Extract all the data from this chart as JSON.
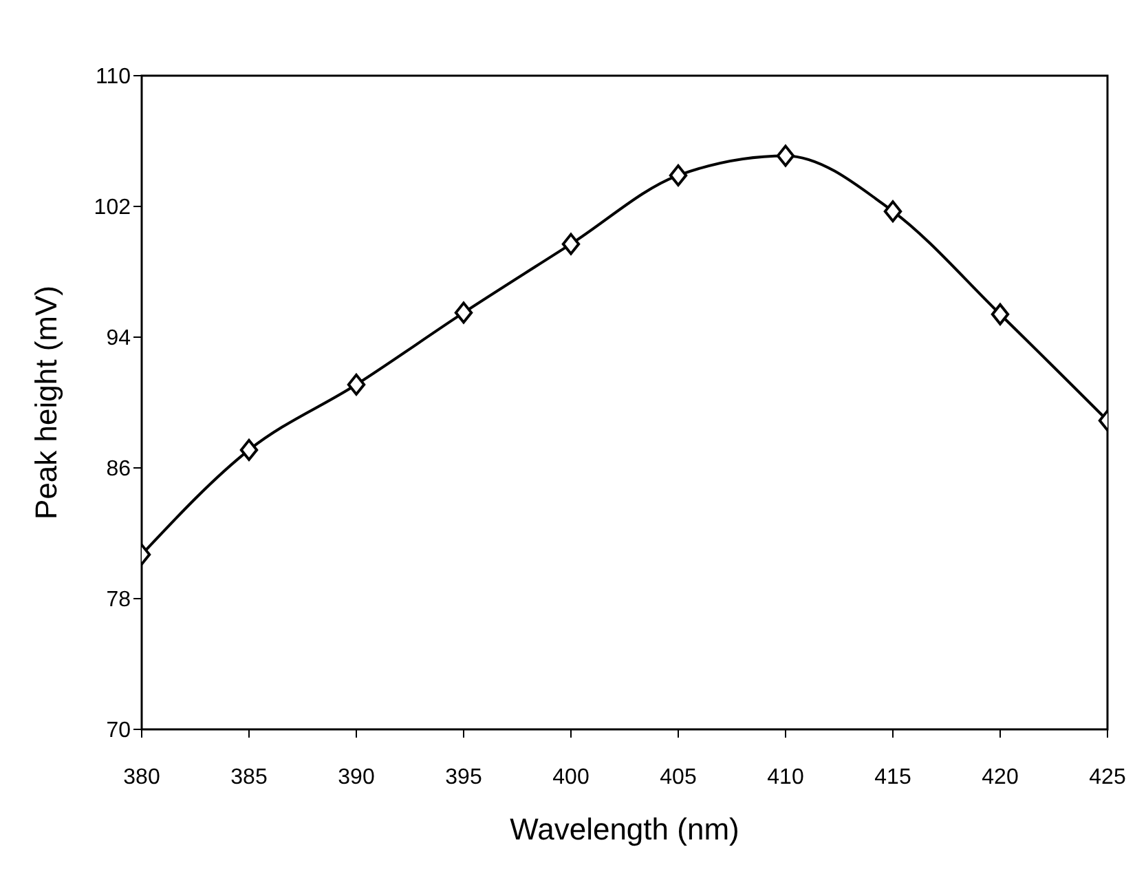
{
  "chart_data": {
    "type": "line",
    "xlabel": "Wavelength (nm)",
    "ylabel": "Peak height (mV)",
    "x": [
      380,
      385,
      390,
      395,
      400,
      405,
      410,
      415,
      420,
      425
    ],
    "series": [
      {
        "color": "#000000",
        "values": [
          80.7,
          87.1,
          91.1,
          95.5,
          99.7,
          103.9,
          105.1,
          101.7,
          95.4,
          88.9
        ]
      }
    ],
    "xlim": [
      380,
      425
    ],
    "xticks": [
      380,
      385,
      390,
      395,
      400,
      405,
      410,
      415,
      420,
      425
    ],
    "ylim": [
      70,
      110
    ],
    "yticks": [
      70,
      78,
      86,
      94,
      102,
      110
    ],
    "grid": false,
    "legend": false,
    "marker": "diamond",
    "line_style": "solid"
  }
}
